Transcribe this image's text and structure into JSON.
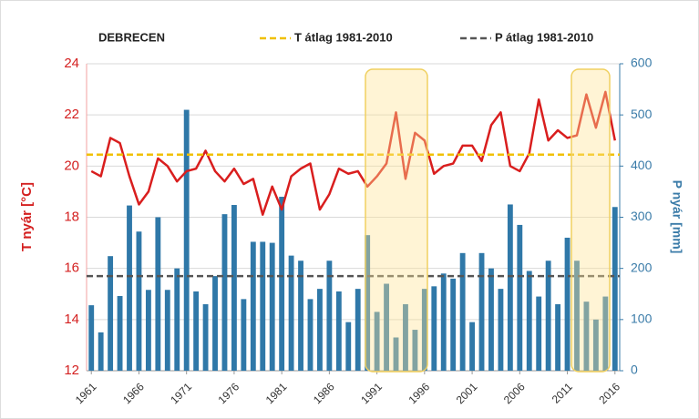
{
  "chart_data": {
    "type": "bar-line",
    "title": "DEBRECEN",
    "y_label": "T nyár [°C]",
    "y2_label": "P nyár [mm]",
    "x": [
      1961,
      1962,
      1963,
      1964,
      1965,
      1966,
      1967,
      1968,
      1969,
      1970,
      1971,
      1972,
      1973,
      1974,
      1975,
      1976,
      1977,
      1978,
      1979,
      1980,
      1981,
      1982,
      1983,
      1984,
      1985,
      1986,
      1987,
      1988,
      1989,
      1990,
      1991,
      1992,
      1993,
      1994,
      1995,
      1996,
      1997,
      1998,
      1999,
      2000,
      2001,
      2002,
      2003,
      2004,
      2005,
      2006,
      2007,
      2008,
      2009,
      2010,
      2011,
      2012,
      2013,
      2014,
      2015,
      2016
    ],
    "xlim": [
      1960.5,
      2016.5
    ],
    "xticks": [
      1961,
      1966,
      1971,
      1976,
      1981,
      1986,
      1991,
      1996,
      2001,
      2006,
      2011,
      2016
    ],
    "ylim": [
      12,
      24
    ],
    "yticks": [
      12,
      14,
      16,
      18,
      20,
      22,
      24
    ],
    "y2lim": [
      0,
      600
    ],
    "y2ticks": [
      0,
      100,
      200,
      300,
      400,
      500,
      600
    ],
    "grid": true,
    "series": [
      {
        "type": "bar",
        "axis": "y2",
        "color": "#2f78a8",
        "values": [
          128,
          75,
          224,
          146,
          323,
          272,
          158,
          300,
          158,
          200,
          510,
          155,
          130,
          185,
          306,
          324,
          140,
          252,
          252,
          250,
          340,
          225,
          215,
          140,
          160,
          215,
          155,
          95,
          160,
          265,
          115,
          170,
          65,
          130,
          80,
          160,
          165,
          190,
          180,
          230,
          95,
          230,
          200,
          160,
          325,
          285,
          195,
          145,
          215,
          130,
          260,
          215,
          135,
          100,
          145,
          320
        ]
      },
      {
        "type": "line",
        "axis": "y",
        "color": "#d91e1e",
        "values": [
          19.8,
          19.6,
          21.1,
          20.9,
          19.6,
          18.5,
          19.0,
          20.3,
          20.0,
          19.4,
          19.8,
          19.9,
          20.6,
          19.8,
          19.4,
          19.9,
          19.3,
          19.5,
          18.1,
          19.2,
          18.3,
          19.6,
          19.9,
          20.1,
          18.3,
          18.9,
          19.9,
          19.7,
          19.8,
          19.2,
          19.6,
          20.1,
          22.1,
          19.5,
          21.3,
          21.0,
          19.7,
          20.0,
          20.1,
          20.8,
          20.8,
          20.2,
          21.6,
          22.1,
          20.0,
          19.8,
          20.5,
          22.6,
          21.0,
          21.4,
          21.1,
          21.2,
          22.8,
          21.5,
          22.9,
          21.0
        ]
      }
    ],
    "reference_lines": [
      {
        "name": "T átlag 1981-2010",
        "axis": "y",
        "value": 20.45,
        "color": "#f0c000"
      },
      {
        "name": "P átlag 1981-2010",
        "axis": "y2",
        "value": 185,
        "color": "#555555"
      }
    ]
  }
}
